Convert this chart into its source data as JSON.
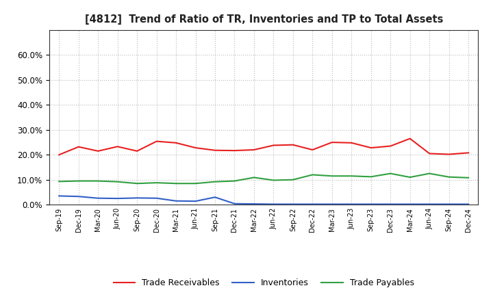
{
  "title": "[4812]  Trend of Ratio of TR, Inventories and TP to Total Assets",
  "x_labels": [
    "Sep-19",
    "Dec-19",
    "Mar-20",
    "Jun-20",
    "Sep-20",
    "Dec-20",
    "Mar-21",
    "Jun-21",
    "Sep-21",
    "Dec-21",
    "Mar-22",
    "Jun-22",
    "Sep-22",
    "Dec-22",
    "Mar-23",
    "Jun-23",
    "Sep-23",
    "Dec-23",
    "Mar-24",
    "Jun-24",
    "Sep-24",
    "Dec-24"
  ],
  "trade_receivables": [
    0.2,
    0.232,
    0.215,
    0.233,
    0.215,
    0.254,
    0.248,
    0.228,
    0.218,
    0.217,
    0.22,
    0.238,
    0.24,
    0.22,
    0.25,
    0.248,
    0.228,
    0.235,
    0.265,
    0.205,
    0.202,
    0.208
  ],
  "inventories": [
    0.035,
    0.033,
    0.026,
    0.025,
    0.027,
    0.026,
    0.015,
    0.014,
    0.03,
    0.004,
    0.003,
    0.002,
    0.002,
    0.002,
    0.002,
    0.002,
    0.002,
    0.002,
    0.002,
    0.002,
    0.002,
    0.002
  ],
  "trade_payables": [
    0.093,
    0.095,
    0.095,
    0.092,
    0.085,
    0.088,
    0.085,
    0.085,
    0.092,
    0.095,
    0.109,
    0.098,
    0.1,
    0.12,
    0.115,
    0.115,
    0.112,
    0.125,
    0.11,
    0.125,
    0.111,
    0.108
  ],
  "ylim": [
    0.0,
    0.7
  ],
  "yticks": [
    0.0,
    0.1,
    0.2,
    0.3,
    0.4,
    0.5,
    0.6
  ],
  "tr_color": "#e82020",
  "inv_color": "#3060c8",
  "tp_color": "#30a040",
  "line_width": 1.5,
  "bg_color": "#ffffff",
  "grid_color": "#aaaaaa",
  "legend_labels": [
    "Trade Receivables",
    "Inventories",
    "Trade Payables"
  ]
}
